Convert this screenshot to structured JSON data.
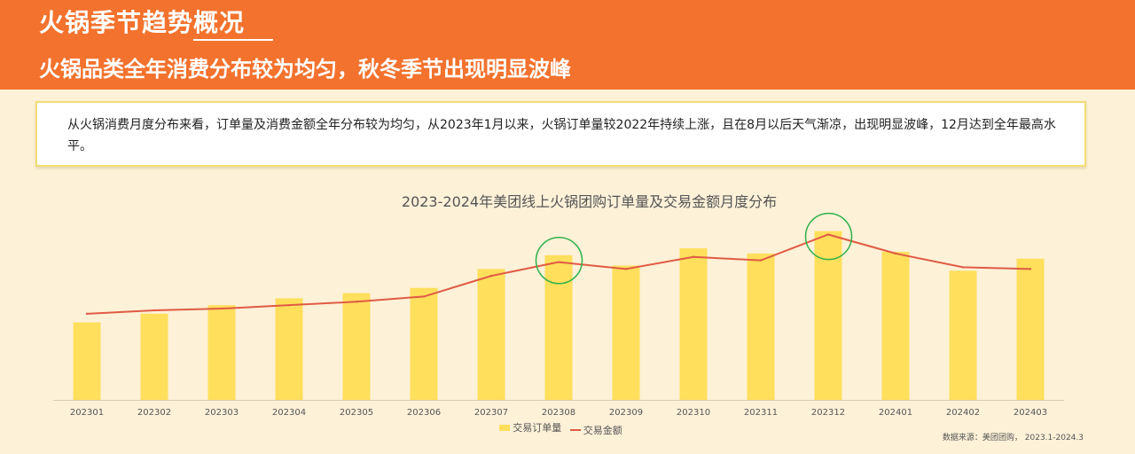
{
  "header": {
    "title": "火锅季节趋势概况",
    "subtitle": "火锅品类全年消费分布较为均匀，秋冬季节出现明显波峰"
  },
  "description": "从火锅消费月度分布来看，订单量及消费金额全年分布较为均匀，从2023年1月以来，火锅订单量较2022年持续上涨，且在8月以后天气渐凉，出现明显波峰，12月达到全年最高水平。",
  "source": "数据来源：美团团购， 2023.1-2024.3",
  "colors": {
    "header": "#f3722d",
    "bar": "#ffdf5c",
    "line": "#e05b45",
    "highlight": "#2fb14a"
  },
  "chart_data": {
    "type": "bar",
    "title": "2023-2024年美团线上火锅团购订单量及交易金额月度分布",
    "categories": [
      "202301",
      "202302",
      "202303",
      "202304",
      "202305",
      "202306",
      "202307",
      "202308",
      "202309",
      "202310",
      "202311",
      "202312",
      "202401",
      "202402",
      "202403"
    ],
    "series": [
      {
        "name": "交易订单量",
        "type": "bar",
        "values": [
          45,
          50,
          55,
          59,
          62,
          65,
          76,
          84,
          78,
          88,
          85,
          98,
          86,
          75,
          82
        ]
      },
      {
        "name": "交易金额",
        "type": "line",
        "values": [
          50,
          52,
          53,
          55,
          57,
          60,
          72,
          80,
          76,
          83,
          81,
          96,
          85,
          77,
          76
        ]
      }
    ],
    "ylim": [
      0,
      105
    ],
    "highlighted_categories": [
      "202308",
      "202312"
    ],
    "legend": "bottom-center",
    "grid": false
  }
}
